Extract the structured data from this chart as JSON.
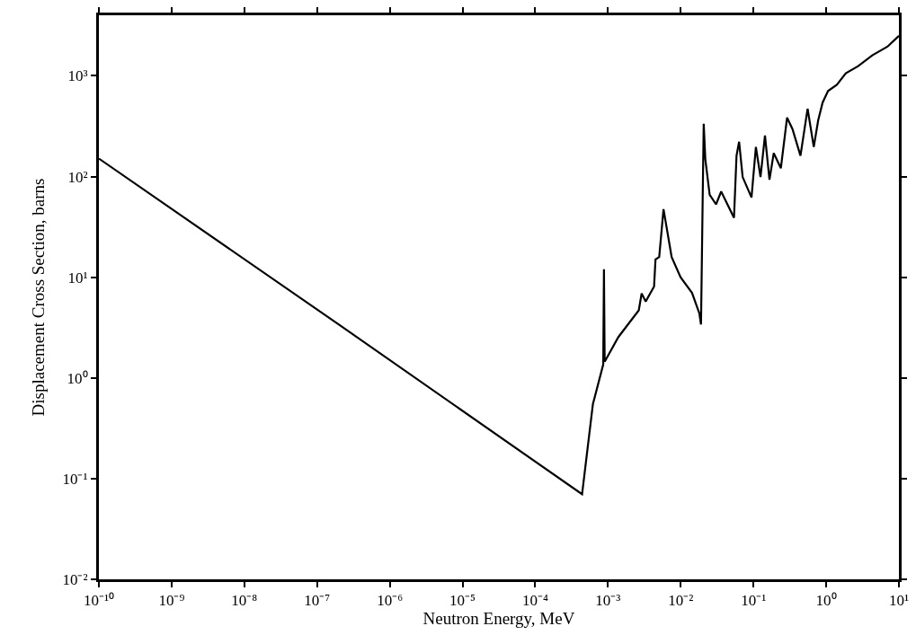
{
  "chart_data": {
    "type": "line",
    "xlabel": "Neutron Energy, MeV",
    "ylabel": "Displacement Cross Section, barns",
    "log": "xy",
    "legend": false,
    "marker": "none",
    "line_style": "solid",
    "xlim": [
      1e-10,
      10
    ],
    "ylim": [
      0.01,
      4000
    ],
    "xticks": [
      {
        "value": 1e-10,
        "label": "10⁻¹⁰"
      },
      {
        "value": 1e-09,
        "label": "10⁻⁹"
      },
      {
        "value": 1e-08,
        "label": "10⁻⁸"
      },
      {
        "value": 1e-07,
        "label": "10⁻⁷"
      },
      {
        "value": 1e-06,
        "label": "10⁻⁶"
      },
      {
        "value": 1e-05,
        "label": "10⁻⁵"
      },
      {
        "value": 0.0001,
        "label": "10⁻⁴"
      },
      {
        "value": 0.001,
        "label": "10⁻³"
      },
      {
        "value": 0.01,
        "label": "10⁻²"
      },
      {
        "value": 0.1,
        "label": "10⁻¹"
      },
      {
        "value": 1,
        "label": "10⁰"
      },
      {
        "value": 10,
        "label": "10¹"
      }
    ],
    "yticks": [
      {
        "value": 0.01,
        "label": "10⁻²"
      },
      {
        "value": 0.1,
        "label": "10⁻¹"
      },
      {
        "value": 1,
        "label": "10⁰"
      },
      {
        "value": 10,
        "label": "10¹"
      },
      {
        "value": 100,
        "label": "10²"
      },
      {
        "value": 1000,
        "label": "10³"
      }
    ],
    "series": [
      {
        "color": "#000000",
        "x": [
          1e-10,
          2.1e-07,
          0.00044,
          0.00062,
          0.00086,
          0.00088,
          0.0009,
          0.00139,
          0.00265,
          0.0029,
          0.0033,
          0.0043,
          0.0045,
          0.00506,
          0.0058,
          0.0075,
          0.00995,
          0.0143,
          0.018,
          0.019,
          0.02,
          0.0207,
          0.0218,
          0.025,
          0.0306,
          0.036,
          0.054,
          0.0585,
          0.0635,
          0.071,
          0.094,
          0.108,
          0.125,
          0.144,
          0.166,
          0.19,
          0.238,
          0.29,
          0.344,
          0.443,
          0.555,
          0.675,
          0.776,
          0.893,
          1.06,
          1.4,
          1.86,
          2.75,
          4.3,
          6.95,
          10
        ],
        "values": [
          151,
          3.3,
          0.07,
          0.55,
          1.36,
          12,
          1.45,
          2.55,
          4.7,
          6.9,
          5.75,
          8.1,
          15,
          15.9,
          47.5,
          15.9,
          10,
          7.0,
          4.4,
          3.4,
          54,
          334,
          148,
          66,
          53,
          71,
          39,
          161,
          222,
          99,
          62,
          197,
          99,
          256,
          93,
          171,
          121,
          385,
          296,
          161,
          472,
          197,
          362,
          543,
          708,
          817,
          1060,
          1250,
          1600,
          1950,
          2500
        ]
      }
    ]
  }
}
